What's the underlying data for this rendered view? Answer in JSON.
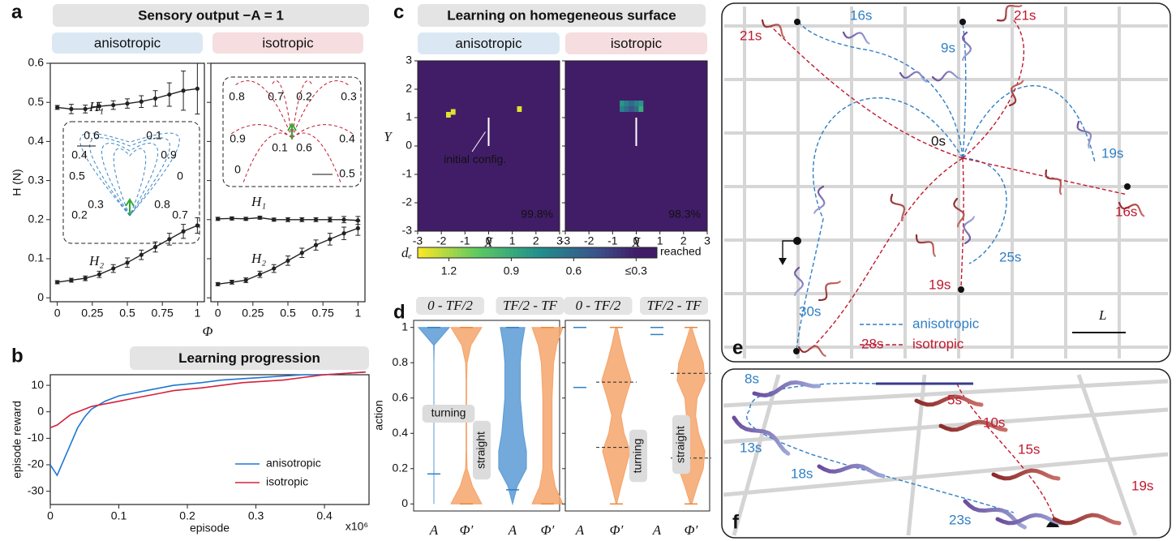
{
  "panel_letters": [
    "a",
    "b",
    "c",
    "d",
    "e",
    "f"
  ],
  "chart_data": [
    {
      "type": "line",
      "title": "Sensory output −A = 1",
      "xlabel": "Φ",
      "ylabel": "H (N)",
      "xlim": [
        -0.05,
        1.05
      ],
      "ylim": [
        -0.01,
        0.6
      ],
      "xticks": [
        0,
        0.25,
        0.5,
        0.75,
        1
      ],
      "yticks": [
        0,
        0.1,
        0.2,
        0.3,
        0.4,
        0.5,
        0.6
      ],
      "subplots": [
        {
          "subtitle": "anisotropic",
          "x": [
            0,
            0.1,
            0.2,
            0.3,
            0.4,
            0.5,
            0.6,
            0.7,
            0.8,
            0.9,
            1
          ],
          "series": [
            {
              "name": "H₁",
              "color": "#222222",
              "values": [
                0.487,
                0.483,
                0.483,
                0.49,
                0.493,
                0.497,
                0.502,
                0.51,
                0.52,
                0.53,
                0.535
              ],
              "errors": [
                0.005,
                0.012,
                0.01,
                0.01,
                0.011,
                0.012,
                0.015,
                0.02,
                0.03,
                0.05,
                0.065
              ]
            },
            {
              "name": "H₂",
              "color": "#222222",
              "values": [
                0.04,
                0.045,
                0.05,
                0.06,
                0.075,
                0.09,
                0.11,
                0.13,
                0.15,
                0.17,
                0.185
              ],
              "errors": [
                0.004,
                0.005,
                0.006,
                0.008,
                0.01,
                0.012,
                0.012,
                0.013,
                0.015,
                0.018,
                0.02
              ]
            }
          ],
          "inset_labels": [
            0.6,
            0.1,
            0.4,
            0.9,
            0.5,
            0,
            0.3,
            0.8,
            0.2,
            0.7
          ]
        },
        {
          "subtitle": "isotropic",
          "x": [
            0,
            0.1,
            0.2,
            0.3,
            0.4,
            0.5,
            0.6,
            0.7,
            0.8,
            0.9,
            1
          ],
          "series": [
            {
              "name": "H₁",
              "color": "#222222",
              "values": [
                0.202,
                0.203,
                0.202,
                0.205,
                0.2,
                0.2,
                0.2,
                0.2,
                0.2,
                0.2,
                0.198
              ],
              "errors": [
                0.004,
                0.004,
                0.004,
                0.004,
                0.004,
                0.005,
                0.005,
                0.005,
                0.006,
                0.008,
                0.01
              ]
            },
            {
              "name": "H₂",
              "color": "#222222",
              "values": [
                0.035,
                0.04,
                0.045,
                0.06,
                0.075,
                0.095,
                0.115,
                0.135,
                0.15,
                0.165,
                0.178
              ],
              "errors": [
                0.004,
                0.005,
                0.006,
                0.008,
                0.01,
                0.012,
                0.012,
                0.013,
                0.015,
                0.016,
                0.018
              ]
            }
          ],
          "inset_labels": [
            0.8,
            0.7,
            0.2,
            0.3,
            0.9,
            0.4,
            0.1,
            0.6,
            0,
            0.5
          ]
        }
      ]
    },
    {
      "type": "line",
      "title": "Learning progression",
      "xlabel": "episode",
      "ylabel": "episode reward",
      "x_multiplier": "x10⁶",
      "xlim": [
        0,
        0.465
      ],
      "ylim": [
        -35,
        14
      ],
      "xticks": [
        0,
        0.1,
        0.2,
        0.3,
        0.4
      ],
      "yticks": [
        -30,
        -20,
        -10,
        0,
        10
      ],
      "legend": "lower right",
      "x": [
        0,
        0.01,
        0.02,
        0.03,
        0.04,
        0.05,
        0.06,
        0.08,
        0.1,
        0.12,
        0.14,
        0.16,
        0.18,
        0.2,
        0.22,
        0.25,
        0.28,
        0.31,
        0.34,
        0.37,
        0.4,
        0.43,
        0.46
      ],
      "series": [
        {
          "name": "anisotropic",
          "color": "#1f77d4",
          "values": [
            -20,
            -24,
            -18,
            -12,
            -6,
            -2,
            1,
            4,
            6,
            7,
            8,
            9,
            10,
            10.5,
            11,
            12,
            12.5,
            13,
            13.5,
            14,
            14,
            14.5,
            15
          ]
        },
        {
          "name": "isotropic",
          "color": "#d6213a",
          "values": [
            -6,
            -5,
            -3,
            -1,
            0,
            1,
            2,
            3,
            4,
            5,
            6,
            7,
            8,
            8.5,
            9,
            10,
            11,
            11.5,
            12,
            13,
            14,
            14.5,
            15
          ]
        }
      ]
    },
    {
      "type": "heatmap",
      "title": "Learning on homegeneous surface",
      "xlabel": "X",
      "ylabel": "Y",
      "xlim": [
        -3,
        3
      ],
      "ylim": [
        -3,
        3
      ],
      "xticks": [
        -3,
        -2,
        -1,
        0,
        1,
        2,
        3
      ],
      "yticks": [
        -3,
        -2,
        -1,
        0,
        1,
        2,
        3
      ],
      "annotation": "initial config.",
      "colorbar_label": "dₑ",
      "colorbar_lim": [
        1.35,
        0.2
      ],
      "colorbar_ticks": [
        1.2,
        0.9,
        0.6,
        {
          "value": 0.3,
          "label": "≤0.3"
        }
      ],
      "colorbar_end_label": "reached",
      "subplots": [
        {
          "subtitle": "anisotropic",
          "score": 99.8,
          "score_label": "99.8%",
          "cells_x": [
            -1.7,
            -1.5,
            1.3
          ],
          "cells_y": [
            1.1,
            1.2,
            1.3
          ],
          "cells_value": [
            1.3,
            1.3,
            1.3
          ]
        },
        {
          "subtitle": "isotropic",
          "score": 98.3,
          "score_label": "98.3%",
          "cells_x": [
            -0.6,
            -0.4,
            -0.2,
            0,
            0.2,
            -0.6,
            -0.4,
            -0.2,
            0,
            0.2
          ],
          "cells_y": [
            1.5,
            1.5,
            1.5,
            1.5,
            1.5,
            1.3,
            1.3,
            1.3,
            1.3,
            1.3
          ],
          "cells_value": [
            0.8,
            0.7,
            0.6,
            0.7,
            0.8,
            0.7,
            0.6,
            0.5,
            0.6,
            0.9
          ]
        }
      ]
    },
    {
      "type": "violin",
      "ylabel": "action",
      "ylim": [
        -0.04,
        1.04
      ],
      "yticks": [
        0,
        0.2,
        0.4,
        0.6,
        0.8,
        1
      ],
      "density_y": [
        0,
        0.1,
        0.2,
        0.3,
        0.4,
        0.5,
        0.6,
        0.7,
        0.8,
        0.9,
        1
      ],
      "panels": [
        {
          "annotations": [
            "turning",
            "straight"
          ],
          "groups": [
            {
              "header": "0 - TF/2",
              "violins": [
                {
                  "name": "A",
                  "color": "#5b9bd5",
                  "density": [
                    0,
                    0,
                    0,
                    0,
                    0,
                    0,
                    0,
                    0,
                    0,
                    0.02,
                    1
                  ],
                  "min": 0.17,
                  "max": 1
                },
                {
                  "name": "Φ′",
                  "color": "#f5a46a",
                  "density": [
                    1,
                    0.4,
                    0.05,
                    0.02,
                    0.02,
                    0.02,
                    0.02,
                    0.02,
                    0.05,
                    0.3,
                    1
                  ],
                  "min": 0,
                  "max": 1
                }
              ]
            },
            {
              "header": "TF/2 - TF",
              "violins": [
                {
                  "name": "A",
                  "color": "#5b9bd5",
                  "density": [
                    0,
                    0.3,
                    0.9,
                    0.9,
                    0.7,
                    0.6,
                    0.5,
                    0.5,
                    0.5,
                    0.6,
                    0.8
                  ],
                  "min": 0.08,
                  "max": 1
                },
                {
                  "name": "Φ′",
                  "color": "#f5a46a",
                  "density": [
                    1,
                    0.5,
                    0.3,
                    0.3,
                    0.3,
                    0.3,
                    0.3,
                    0.35,
                    0.4,
                    0.6,
                    1
                  ],
                  "min": 0,
                  "max": 1
                }
              ]
            }
          ]
        },
        {
          "annotations": [
            "turning",
            "straight"
          ],
          "groups": [
            {
              "header": "0 - TF/2",
              "violins": [
                {
                  "name": "A",
                  "color": "#5b9bd5",
                  "density": [
                    0,
                    0,
                    0,
                    0,
                    0,
                    0,
                    0,
                    0,
                    0,
                    0,
                    0
                  ],
                  "min": 0.66,
                  "max": 1
                },
                {
                  "name": "Φ′",
                  "color": "#f5a46a",
                  "density": [
                    0.02,
                    0.3,
                    0.6,
                    0.9,
                    0.5,
                    0.3,
                    0.6,
                    0.95,
                    0.6,
                    0.3,
                    0.05
                  ],
                  "min": 0,
                  "max": 1,
                  "lines": [
                    0.69,
                    0.32
                  ]
                }
              ]
            },
            {
              "header": "TF/2 - TF",
              "violins": [
                {
                  "name": "A",
                  "color": "#5b9bd5",
                  "density": [
                    0,
                    0,
                    0,
                    0,
                    0,
                    0,
                    0,
                    0,
                    0,
                    0,
                    0
                  ],
                  "min": 0.96,
                  "max": 1
                },
                {
                  "name": "Φ′",
                  "color": "#f5a46a",
                  "density": [
                    0.05,
                    0.4,
                    0.8,
                    0.9,
                    0.5,
                    0.3,
                    0.4,
                    0.9,
                    0.8,
                    0.4,
                    0.05
                  ],
                  "min": 0,
                  "max": 1,
                  "lines": [
                    0.74,
                    0.26
                  ]
                }
              ]
            }
          ]
        }
      ]
    }
  ],
  "panel_e": {
    "anisotropic_times": [
      "16s",
      "9s",
      "19s",
      "25s",
      "30s"
    ],
    "isotropic_times": [
      "21s",
      "21s",
      "16s",
      "19s",
      "28s"
    ],
    "start_time": "0s",
    "legend": [
      "anisotropic",
      "isotropic"
    ],
    "scale_label": "L"
  },
  "panel_f": {
    "anisotropic_times": [
      "8s",
      "13s",
      "18s",
      "23s"
    ],
    "isotropic_times": [
      "5s",
      "10s",
      "15s",
      "19s"
    ]
  }
}
